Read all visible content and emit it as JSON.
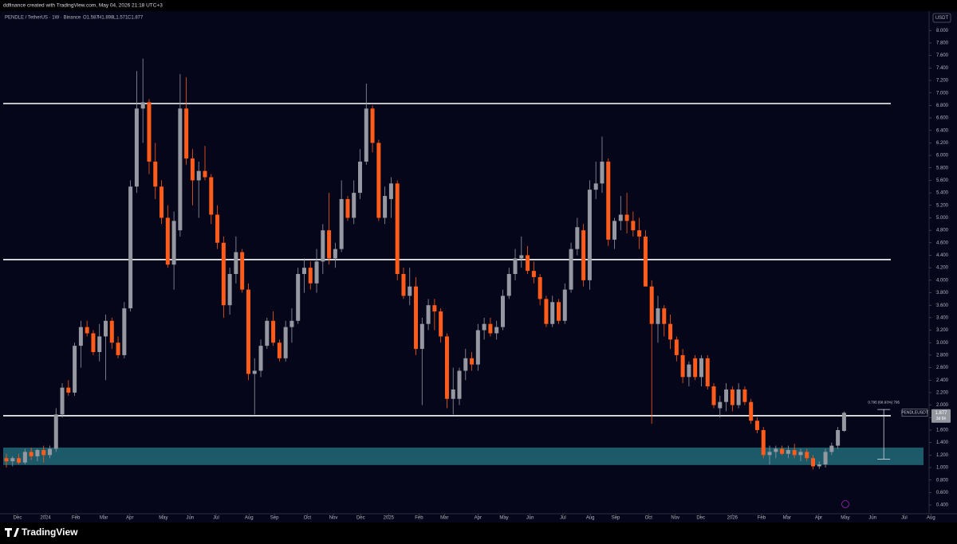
{
  "header": {
    "text": "ddfinance created with TradingView.com, May 04, 2026 21:18 UTC+3"
  },
  "footer": {
    "logo": "TradingView"
  },
  "chart_data": {
    "type": "candlestick",
    "title": "PENDLE / TetherUS · 1W · Binance",
    "ohlc": [
      "O1.587",
      "H1.898",
      "L1.571",
      "C1.877"
    ],
    "currency": "USDT",
    "up_color": "#9598a1",
    "down_color": "#ff5b1a",
    "grid": false,
    "candles": {
      "open": [
        1.15,
        1.1,
        1.15,
        1.08,
        1.25,
        1.18,
        1.28,
        1.2,
        1.3,
        1.85,
        2.28,
        2.2,
        2.95,
        3.25,
        3.15,
        2.85,
        3.1,
        3.35,
        3.0,
        2.8,
        3.55,
        5.5,
        6.75,
        6.85,
        5.9,
        5.5,
        5.0,
        4.25,
        4.8,
        6.75,
        5.95,
        5.6,
        5.75,
        5.65,
        5.05,
        4.6,
        3.6,
        4.1,
        4.45,
        3.85,
        2.5,
        2.55,
        2.95,
        3.35,
        3.0,
        2.75,
        3.25,
        3.35,
        4.1,
        4.2,
        3.95,
        4.3,
        4.8,
        4.35,
        4.5,
        5.3,
        5.0,
        5.4,
        5.9,
        6.75,
        6.2,
        5.0,
        5.3,
        5.55,
        4.1,
        3.75,
        3.9,
        2.9,
        3.3,
        3.6,
        3.5,
        3.1,
        2.1,
        2.1,
        2.55,
        2.75,
        2.65,
        3.2,
        3.3,
        3.15,
        3.25,
        3.75,
        4.1,
        4.35,
        4.4,
        4.15,
        4.05,
        3.7,
        3.3,
        3.65,
        3.35,
        3.85,
        4.5,
        4.8,
        4.0,
        5.45,
        5.55,
        5.9,
        4.65,
        4.95,
        5.05,
        4.95,
        4.8,
        4.7,
        3.9,
        3.3,
        3.55,
        3.3,
        3.05,
        2.8,
        2.45,
        2.75,
        2.45,
        2.75,
        2.3,
        1.95,
        2.05,
        2.25,
        2.0,
        2.25,
        2.05,
        1.75,
        1.6,
        1.2,
        1.25,
        1.3,
        1.22,
        1.28,
        1.2,
        1.25,
        1.15,
        1.02,
        1.05,
        1.25,
        1.35,
        1.587
      ],
      "high": [
        1.22,
        1.18,
        1.22,
        1.3,
        1.32,
        1.3,
        1.35,
        1.35,
        1.95,
        2.35,
        2.4,
        3.0,
        3.35,
        3.35,
        3.2,
        3.3,
        3.45,
        3.4,
        3.1,
        3.65,
        5.6,
        7.35,
        7.55,
        6.9,
        6.2,
        5.6,
        5.2,
        5.1,
        7.3,
        7.25,
        6.1,
        5.9,
        6.15,
        5.7,
        5.2,
        4.7,
        4.2,
        4.7,
        4.5,
        3.95,
        2.75,
        3.05,
        3.4,
        3.5,
        3.05,
        3.35,
        3.55,
        4.2,
        4.35,
        4.3,
        4.5,
        4.9,
        5.4,
        4.6,
        5.6,
        5.35,
        5.6,
        6.1,
        7.15,
        6.8,
        6.25,
        5.5,
        5.65,
        5.6,
        4.2,
        4.2,
        4.05,
        3.4,
        3.7,
        3.7,
        3.55,
        3.15,
        2.6,
        2.6,
        2.9,
        2.85,
        3.3,
        3.4,
        3.4,
        3.35,
        3.85,
        4.2,
        4.5,
        4.7,
        4.55,
        4.3,
        4.1,
        3.75,
        3.75,
        3.7,
        3.95,
        4.6,
        5.0,
        4.9,
        5.6,
        5.9,
        6.3,
        5.95,
        5.0,
        5.35,
        5.4,
        5.1,
        5.0,
        4.8,
        4.0,
        3.75,
        3.6,
        3.45,
        3.1,
        2.9,
        2.7,
        2.8,
        2.8,
        2.8,
        2.35,
        2.15,
        2.35,
        2.3,
        2.35,
        2.3,
        2.1,
        1.8,
        1.65,
        1.35,
        1.35,
        1.35,
        1.35,
        1.38,
        1.3,
        1.3,
        1.2,
        1.1,
        1.3,
        1.4,
        1.65,
        1.898
      ],
      "low": [
        1.0,
        1.02,
        1.05,
        1.05,
        1.12,
        1.1,
        1.08,
        1.15,
        1.25,
        1.8,
        2.15,
        2.15,
        2.6,
        3.1,
        2.8,
        2.7,
        2.4,
        2.9,
        2.75,
        2.75,
        3.5,
        5.4,
        6.2,
        5.7,
        5.3,
        4.9,
        4.2,
        3.85,
        4.7,
        5.85,
        5.2,
        5.0,
        5.6,
        4.9,
        4.5,
        3.4,
        3.45,
        3.95,
        3.8,
        2.4,
        1.85,
        2.45,
        2.9,
        2.95,
        2.7,
        2.7,
        3.0,
        3.3,
        3.8,
        3.85,
        3.8,
        4.1,
        4.25,
        4.2,
        4.45,
        4.95,
        4.9,
        5.3,
        5.85,
        6.05,
        4.95,
        4.9,
        5.0,
        4.0,
        3.7,
        3.6,
        2.8,
        2.0,
        3.2,
        3.2,
        3.0,
        1.95,
        1.85,
        2.0,
        2.4,
        2.55,
        2.55,
        3.05,
        3.1,
        3.05,
        3.2,
        3.7,
        4.0,
        4.2,
        4.1,
        3.95,
        3.6,
        3.25,
        3.25,
        3.3,
        3.3,
        3.8,
        4.4,
        3.9,
        3.85,
        5.3,
        5.4,
        4.55,
        4.5,
        4.8,
        4.75,
        4.7,
        4.5,
        3.9,
        1.7,
        3.0,
        3.1,
        2.9,
        2.7,
        2.35,
        2.3,
        2.4,
        2.3,
        2.25,
        1.95,
        1.8,
        1.9,
        1.9,
        1.95,
        2.0,
        1.7,
        1.55,
        1.15,
        1.05,
        1.15,
        1.2,
        1.15,
        1.15,
        1.1,
        1.1,
        0.97,
        0.98,
        1.0,
        1.2,
        1.3,
        1.571
      ],
      "close": [
        1.1,
        1.15,
        1.08,
        1.25,
        1.18,
        1.28,
        1.2,
        1.3,
        1.85,
        2.28,
        2.2,
        2.95,
        3.25,
        3.15,
        2.85,
        3.1,
        3.35,
        3.0,
        2.8,
        3.55,
        5.5,
        6.75,
        6.85,
        5.9,
        5.5,
        5.0,
        4.25,
        4.95,
        6.75,
        5.95,
        5.6,
        5.75,
        5.65,
        5.05,
        4.6,
        3.6,
        4.1,
        4.45,
        3.85,
        2.5,
        2.55,
        2.95,
        3.35,
        3.0,
        2.75,
        3.25,
        3.35,
        4.1,
        4.2,
        3.95,
        4.3,
        4.8,
        4.35,
        4.5,
        5.3,
        5.0,
        5.4,
        5.9,
        6.75,
        6.2,
        5.0,
        5.35,
        5.55,
        4.1,
        3.75,
        3.9,
        2.9,
        3.3,
        3.6,
        3.5,
        3.1,
        2.1,
        2.25,
        2.55,
        2.75,
        2.65,
        3.2,
        3.3,
        3.15,
        3.25,
        3.75,
        4.1,
        4.35,
        4.4,
        4.15,
        4.05,
        3.7,
        3.3,
        3.65,
        3.35,
        3.85,
        4.5,
        4.85,
        4.0,
        5.45,
        5.55,
        5.9,
        4.65,
        4.95,
        5.05,
        4.95,
        4.8,
        4.7,
        3.9,
        3.3,
        3.55,
        3.3,
        3.05,
        2.8,
        2.45,
        2.65,
        2.45,
        2.75,
        2.3,
        2.0,
        2.05,
        2.25,
        2.0,
        2.25,
        2.05,
        1.75,
        1.6,
        1.2,
        1.25,
        1.3,
        1.22,
        1.28,
        1.2,
        1.25,
        1.15,
        1.02,
        1.05,
        1.25,
        1.35,
        1.6,
        1.877
      ]
    },
    "xlim": [
      -1.03,
      148.7
    ],
    "xticks": [
      {
        "value": 1.8,
        "label": "Dec"
      },
      {
        "value": 6.3,
        "label": "2024"
      },
      {
        "value": 11.2,
        "label": "Feb"
      },
      {
        "value": 15.7,
        "label": "Mar"
      },
      {
        "value": 19.9,
        "label": "Apr"
      },
      {
        "value": 25.3,
        "label": "May"
      },
      {
        "value": 29.6,
        "label": "Jun"
      },
      {
        "value": 33.8,
        "label": "Jul"
      },
      {
        "value": 39.1,
        "label": "Aug"
      },
      {
        "value": 43.2,
        "label": "Sep"
      },
      {
        "value": 48.5,
        "label": "Oct"
      },
      {
        "value": 52.7,
        "label": "Nov"
      },
      {
        "value": 57.1,
        "label": "Dec"
      },
      {
        "value": 61.6,
        "label": "2025"
      },
      {
        "value": 66.5,
        "label": "Feb"
      },
      {
        "value": 70.6,
        "label": "Mar"
      },
      {
        "value": 76.0,
        "label": "Apr"
      },
      {
        "value": 80.2,
        "label": "May"
      },
      {
        "value": 84.4,
        "label": "Jun"
      },
      {
        "value": 89.7,
        "label": "Jul"
      },
      {
        "value": 94.1,
        "label": "Aug"
      },
      {
        "value": 98.2,
        "label": "Sep"
      },
      {
        "value": 103.5,
        "label": "Oct"
      },
      {
        "value": 107.8,
        "label": "Nov"
      },
      {
        "value": 111.9,
        "label": "Dec"
      },
      {
        "value": 117.0,
        "label": "2026"
      },
      {
        "value": 121.7,
        "label": "Feb"
      },
      {
        "value": 125.8,
        "label": "Mar"
      },
      {
        "value": 130.9,
        "label": "Apr"
      },
      {
        "value": 135.2,
        "label": "May"
      },
      {
        "value": 139.6,
        "label": "Jun"
      },
      {
        "value": 144.7,
        "label": "Jul"
      },
      {
        "value": 149.0,
        "label": "Aug"
      }
    ],
    "ylim": [
      0.26,
      8.31
    ],
    "yticks": [
      {
        "value": 0.4,
        "label": "0.400"
      },
      {
        "value": 0.6,
        "label": "0.600"
      },
      {
        "value": 0.8,
        "label": "0.800"
      },
      {
        "value": 1.0,
        "label": "1.000"
      },
      {
        "value": 1.2,
        "label": "1.200"
      },
      {
        "value": 1.4,
        "label": "1.400"
      },
      {
        "value": 1.6,
        "label": "1.600"
      },
      {
        "value": 1.8,
        "label": "1.800"
      },
      {
        "value": 2.0,
        "label": "2.000"
      },
      {
        "value": 2.2,
        "label": "2.200"
      },
      {
        "value": 2.4,
        "label": "2.400"
      },
      {
        "value": 2.6,
        "label": "2.600"
      },
      {
        "value": 2.8,
        "label": "2.800"
      },
      {
        "value": 3.0,
        "label": "3.000"
      },
      {
        "value": 3.2,
        "label": "3.200"
      },
      {
        "value": 3.4,
        "label": "3.400"
      },
      {
        "value": 3.6,
        "label": "3.600"
      },
      {
        "value": 3.8,
        "label": "3.800"
      },
      {
        "value": 4.0,
        "label": "4.000"
      },
      {
        "value": 4.2,
        "label": "4.200"
      },
      {
        "value": 4.4,
        "label": "4.400"
      },
      {
        "value": 4.6,
        "label": "4.600"
      },
      {
        "value": 4.8,
        "label": "4.800"
      },
      {
        "value": 5.0,
        "label": "5.000"
      },
      {
        "value": 5.2,
        "label": "5.200"
      },
      {
        "value": 5.4,
        "label": "5.400"
      },
      {
        "value": 5.6,
        "label": "5.600"
      },
      {
        "value": 5.8,
        "label": "5.800"
      },
      {
        "value": 6.0,
        "label": "6.000"
      },
      {
        "value": 6.2,
        "label": "6.200"
      },
      {
        "value": 6.4,
        "label": "6.400"
      },
      {
        "value": 6.6,
        "label": "6.600"
      },
      {
        "value": 6.8,
        "label": "6.800"
      },
      {
        "value": 7.0,
        "label": "7.000"
      },
      {
        "value": 7.2,
        "label": "7.200"
      },
      {
        "value": 7.4,
        "label": "7.400"
      },
      {
        "value": 7.6,
        "label": "7.600"
      },
      {
        "value": 7.8,
        "label": "7.800"
      },
      {
        "value": 8.0,
        "label": "8.000"
      }
    ],
    "levels": [
      6.83,
      4.33,
      1.83
    ],
    "zone": [
      1.04,
      1.32
    ],
    "measure": {
      "label": "0.795 (68.93%) 795",
      "from": 1.135,
      "to": 1.93
    },
    "price_tag": {
      "symbol": "PENDLEUSDT",
      "price": "1.877",
      "countdown": "3d 6h"
    }
  }
}
